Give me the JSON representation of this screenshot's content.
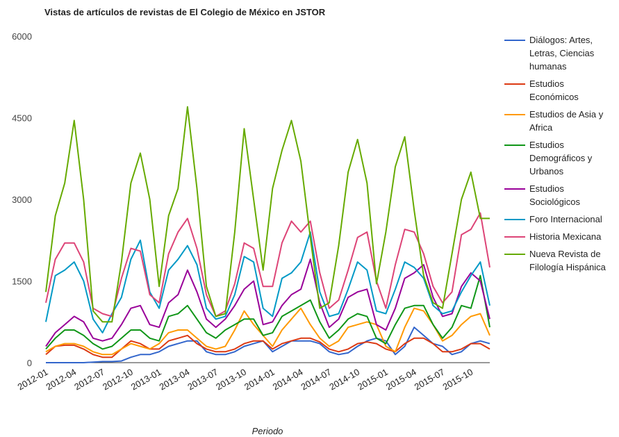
{
  "chart_data": {
    "type": "line",
    "title": "Vistas de artículos de revistas de El Colegio de México en JSTOR",
    "xlabel": "Periodo",
    "ylabel": "",
    "ylim": [
      0,
      6000
    ],
    "yticks": [
      "0",
      "1500",
      "3000",
      "4500",
      "6000"
    ],
    "grid": false,
    "legend": "right",
    "x": [
      "2012-01",
      "2012-02",
      "2012-03",
      "2012-04",
      "2012-05",
      "2012-06",
      "2012-07",
      "2012-08",
      "2012-09",
      "2012-10",
      "2012-11",
      "2012-12",
      "2013-01",
      "2013-02",
      "2013-03",
      "2013-04",
      "2013-05",
      "2013-06",
      "2013-07",
      "2013-08",
      "2013-09",
      "2013-10",
      "2013-11",
      "2013-12",
      "2014-01",
      "2014-02",
      "2014-03",
      "2014-04",
      "2014-05",
      "2014-06",
      "2014-07",
      "2014-08",
      "2014-09",
      "2014-10",
      "2014-11",
      "2014-12",
      "2015-01",
      "2015-02",
      "2015-03",
      "2015-04",
      "2015-05",
      "2015-06",
      "2015-07",
      "2015-08",
      "2015-09",
      "2015-10",
      "2015-11",
      "2015-12"
    ],
    "xtick_labels": [
      "2012-01",
      "2012-04",
      "2012-07",
      "2012-10",
      "2013-01",
      "2013-04",
      "2013-07",
      "2013-10",
      "2014-01",
      "2014-04",
      "2014-07",
      "2014-10",
      "2015-01",
      "2015-04",
      "2015-07",
      "2015-10"
    ],
    "series": [
      {
        "name": "Diálogos: Artes, Letras, Ciencias humanas",
        "legend_lines": [
          "Diálogos: Artes,",
          "Letras, Ciencias",
          "humanas"
        ],
        "color": "#3366cc",
        "values": [
          0,
          0,
          0,
          0,
          0,
          10,
          20,
          20,
          30,
          100,
          150,
          150,
          200,
          300,
          350,
          400,
          400,
          200,
          150,
          150,
          200,
          300,
          350,
          400,
          200,
          300,
          400,
          400,
          400,
          350,
          200,
          150,
          180,
          300,
          400,
          450,
          400,
          150,
          300,
          650,
          500,
          350,
          300,
          150,
          200,
          350,
          400,
          350
        ]
      },
      {
        "name": "Estudios Económicos",
        "legend_lines": [
          "Estudios",
          "Económicos"
        ],
        "color": "#dc3912",
        "values": [
          150,
          300,
          320,
          320,
          250,
          150,
          100,
          100,
          250,
          400,
          350,
          250,
          250,
          400,
          450,
          500,
          350,
          250,
          200,
          200,
          250,
          350,
          400,
          400,
          250,
          350,
          400,
          450,
          450,
          380,
          250,
          200,
          250,
          350,
          380,
          350,
          250,
          200,
          350,
          450,
          450,
          350,
          200,
          200,
          250,
          350,
          350,
          250
        ]
      },
      {
        "name": "Estudios de Asia y Africa",
        "legend_lines": [
          "Estudios de Asia y",
          "Africa"
        ],
        "color": "#ff9900",
        "values": [
          200,
          300,
          350,
          350,
          300,
          200,
          150,
          150,
          250,
          350,
          300,
          250,
          350,
          550,
          600,
          600,
          450,
          300,
          250,
          300,
          600,
          950,
          700,
          500,
          300,
          600,
          800,
          1000,
          700,
          450,
          300,
          400,
          650,
          700,
          750,
          700,
          300,
          200,
          650,
          1000,
          950,
          700,
          400,
          500,
          700,
          850,
          900,
          500
        ]
      },
      {
        "name": "Estudios Demográficos y Urbanos",
        "legend_lines": [
          "Estudios",
          "Demográficos y",
          "Urbanos"
        ],
        "color": "#109618",
        "values": [
          250,
          450,
          600,
          600,
          500,
          350,
          250,
          300,
          450,
          600,
          600,
          450,
          400,
          850,
          900,
          1050,
          800,
          550,
          450,
          600,
          700,
          800,
          800,
          500,
          550,
          850,
          950,
          1050,
          1150,
          750,
          450,
          600,
          800,
          900,
          850,
          450,
          350,
          700,
          1000,
          1050,
          1050,
          700,
          450,
          650,
          1050,
          1000,
          1600,
          650
        ]
      },
      {
        "name": "Estudios Sociológicos",
        "legend_lines": [
          "Estudios",
          "Sociológicos"
        ],
        "color": "#990099",
        "values": [
          300,
          550,
          700,
          850,
          750,
          450,
          400,
          450,
          700,
          1000,
          1050,
          700,
          650,
          1100,
          1250,
          1700,
          1300,
          800,
          650,
          800,
          1050,
          1350,
          1500,
          700,
          750,
          1050,
          1250,
          1350,
          1900,
          1100,
          650,
          800,
          1200,
          1300,
          1350,
          700,
          600,
          1000,
          1550,
          1650,
          1800,
          1200,
          850,
          900,
          1400,
          1650,
          1500,
          800
        ]
      },
      {
        "name": "Foro Internacional",
        "legend_lines": [
          "Foro Internacional"
        ],
        "color": "#0099c6",
        "values": [
          750,
          1600,
          1700,
          1850,
          1500,
          800,
          550,
          900,
          1200,
          1900,
          2250,
          1300,
          1000,
          1700,
          1900,
          2150,
          1800,
          1000,
          800,
          850,
          1250,
          1950,
          1850,
          1000,
          850,
          1550,
          1650,
          1850,
          2400,
          1300,
          850,
          900,
          1350,
          1850,
          1700,
          950,
          900,
          1350,
          1850,
          1750,
          1550,
          1050,
          900,
          950,
          1300,
          1600,
          1850,
          1050
        ]
      },
      {
        "name": "Historia Mexicana",
        "legend_lines": [
          "Historia Mexicana"
        ],
        "color": "#dd4477",
        "values": [
          1100,
          1900,
          2200,
          2200,
          1850,
          1000,
          900,
          850,
          1550,
          2100,
          2050,
          1250,
          1100,
          2000,
          2400,
          2650,
          2100,
          1250,
          850,
          950,
          1450,
          2200,
          2100,
          1400,
          1400,
          2200,
          2600,
          2400,
          2600,
          1650,
          1000,
          1150,
          1700,
          2300,
          2400,
          1500,
          1000,
          1800,
          2450,
          2400,
          2000,
          1400,
          1100,
          1300,
          2350,
          2450,
          2750,
          1750
        ]
      },
      {
        "name": "Nueva Revista de Filología Hispánica",
        "legend_lines": [
          "Nueva Revista de",
          "Filología Hispánica"
        ],
        "color": "#66aa00",
        "values": [
          1300,
          2700,
          3300,
          4450,
          3000,
          950,
          750,
          750,
          1850,
          3300,
          3850,
          3000,
          1400,
          2700,
          3200,
          4700,
          3200,
          1400,
          850,
          900,
          2400,
          4300,
          3000,
          1700,
          3200,
          3900,
          4450,
          3700,
          2300,
          1000,
          1100,
          2150,
          3500,
          4100,
          3300,
          1450,
          2400,
          3600,
          4150,
          2800,
          1600,
          1100,
          1000,
          2000,
          3000,
          3500,
          2650,
          2650
        ]
      }
    ]
  }
}
